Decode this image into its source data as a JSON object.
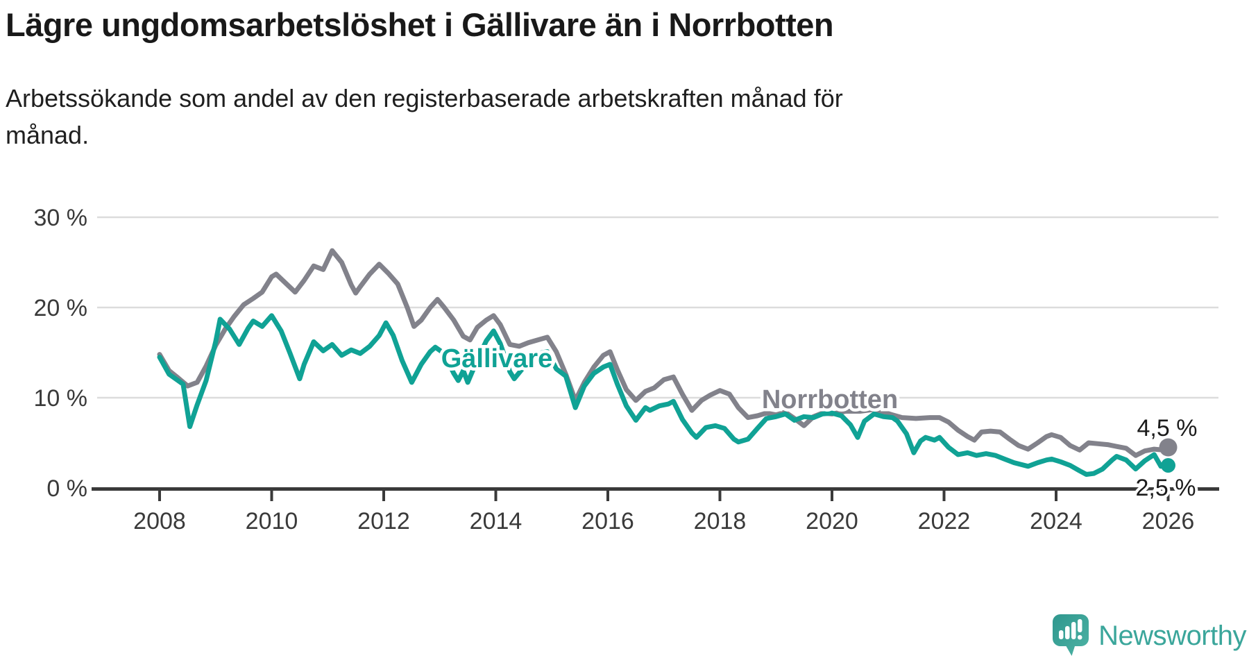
{
  "header": {
    "title": "Lägre ungdomsarbetslöshet i Gällivare än i Norrbotten",
    "subtitle_line1": "Arbetssökande som andel av den registerbaserade arbetskraften månad för",
    "subtitle_line2": "månad."
  },
  "colors": {
    "gallivare": "#10a295",
    "norrbotten": "#82828b",
    "grid": "#dcdcdc",
    "axis_line": "#3a3a3a",
    "axis_text": "#3a3a3a",
    "title_text": "#191919",
    "logo_brand": "#3ba69b"
  },
  "annotations": {
    "gallivare_series_label": "Gällivare",
    "norrbotten_series_label": "Norrbotten",
    "norrbotten_end_value": "4,5 %",
    "gallivare_end_value": "2,5 %"
  },
  "footer": {
    "brand": "Newsworthy"
  },
  "chart_data": {
    "type": "line",
    "title": "Lägre ungdomsarbetslöshet i Gällivare än i Norrbotten",
    "xlabel": "",
    "ylabel": "Arbetssökande som andel av den registerbaserade arbetskraften",
    "grid": "horizontal",
    "legend_position": "inline-labels",
    "x_axis": {
      "range": [
        2008,
        2026.05
      ],
      "ticks": [
        2008,
        2010,
        2012,
        2014,
        2016,
        2018,
        2020,
        2022,
        2024,
        2026
      ],
      "tick_labels": [
        "2008",
        "2010",
        "2012",
        "2014",
        "2016",
        "2018",
        "2020",
        "2022",
        "2024",
        "2026"
      ]
    },
    "y_axis": {
      "range": [
        0,
        31
      ],
      "ticks": [
        0,
        10,
        20,
        30
      ],
      "tick_labels": [
        "0 %",
        "10 %",
        "20 %",
        "30 %"
      ]
    },
    "series": [
      {
        "name": "Norrbotten",
        "color": "#82828b",
        "end_label": "4,5 %",
        "end_value": 4.5,
        "points": [
          [
            2008.0,
            14.8
          ],
          [
            2008.17,
            13.0
          ],
          [
            2008.33,
            12.2
          ],
          [
            2008.5,
            11.3
          ],
          [
            2008.67,
            11.7
          ],
          [
            2008.83,
            13.5
          ],
          [
            2009.0,
            15.8
          ],
          [
            2009.17,
            17.6
          ],
          [
            2009.33,
            19.0
          ],
          [
            2009.5,
            20.3
          ],
          [
            2009.67,
            21.0
          ],
          [
            2009.83,
            21.7
          ],
          [
            2010.0,
            23.4
          ],
          [
            2010.08,
            23.7
          ],
          [
            2010.25,
            22.7
          ],
          [
            2010.42,
            21.7
          ],
          [
            2010.58,
            23.0
          ],
          [
            2010.75,
            24.6
          ],
          [
            2010.92,
            24.2
          ],
          [
            2011.08,
            26.3
          ],
          [
            2011.25,
            25.0
          ],
          [
            2011.42,
            22.5
          ],
          [
            2011.5,
            21.6
          ],
          [
            2011.58,
            22.3
          ],
          [
            2011.75,
            23.7
          ],
          [
            2011.92,
            24.8
          ],
          [
            2012.08,
            23.8
          ],
          [
            2012.25,
            22.6
          ],
          [
            2012.42,
            20.0
          ],
          [
            2012.54,
            17.9
          ],
          [
            2012.67,
            18.6
          ],
          [
            2012.83,
            20.0
          ],
          [
            2012.96,
            20.9
          ],
          [
            2013.08,
            20.0
          ],
          [
            2013.25,
            18.6
          ],
          [
            2013.42,
            16.8
          ],
          [
            2013.54,
            16.4
          ],
          [
            2013.67,
            17.8
          ],
          [
            2013.83,
            18.6
          ],
          [
            2013.96,
            19.1
          ],
          [
            2014.08,
            18.1
          ],
          [
            2014.25,
            15.9
          ],
          [
            2014.42,
            15.7
          ],
          [
            2014.58,
            16.1
          ],
          [
            2014.75,
            16.4
          ],
          [
            2014.92,
            16.7
          ],
          [
            2015.08,
            15.1
          ],
          [
            2015.25,
            12.6
          ],
          [
            2015.42,
            9.7
          ],
          [
            2015.58,
            11.7
          ],
          [
            2015.75,
            13.4
          ],
          [
            2015.92,
            14.7
          ],
          [
            2016.04,
            15.1
          ],
          [
            2016.17,
            13.1
          ],
          [
            2016.33,
            10.9
          ],
          [
            2016.5,
            9.7
          ],
          [
            2016.67,
            10.7
          ],
          [
            2016.83,
            11.1
          ],
          [
            2017.0,
            12.0
          ],
          [
            2017.17,
            12.3
          ],
          [
            2017.33,
            10.4
          ],
          [
            2017.5,
            8.6
          ],
          [
            2017.67,
            9.7
          ],
          [
            2017.83,
            10.3
          ],
          [
            2018.0,
            10.8
          ],
          [
            2018.17,
            10.4
          ],
          [
            2018.33,
            8.9
          ],
          [
            2018.5,
            7.8
          ],
          [
            2018.67,
            8.0
          ],
          [
            2018.83,
            8.3
          ],
          [
            2019.0,
            8.1
          ],
          [
            2019.17,
            8.4
          ],
          [
            2019.33,
            7.7
          ],
          [
            2019.5,
            6.9
          ],
          [
            2019.67,
            7.9
          ],
          [
            2019.83,
            8.3
          ],
          [
            2020.0,
            8.2
          ],
          [
            2020.25,
            8.5
          ],
          [
            2020.5,
            8.5
          ],
          [
            2020.75,
            8.7
          ],
          [
            2020.92,
            8.4
          ],
          [
            2021.08,
            8.1
          ],
          [
            2021.25,
            7.8
          ],
          [
            2021.5,
            7.7
          ],
          [
            2021.75,
            7.8
          ],
          [
            2021.92,
            7.8
          ],
          [
            2022.08,
            7.3
          ],
          [
            2022.25,
            6.4
          ],
          [
            2022.42,
            5.7
          ],
          [
            2022.54,
            5.3
          ],
          [
            2022.67,
            6.2
          ],
          [
            2022.83,
            6.3
          ],
          [
            2023.0,
            6.2
          ],
          [
            2023.17,
            5.4
          ],
          [
            2023.33,
            4.7
          ],
          [
            2023.5,
            4.3
          ],
          [
            2023.67,
            5.0
          ],
          [
            2023.83,
            5.7
          ],
          [
            2023.92,
            5.9
          ],
          [
            2024.08,
            5.6
          ],
          [
            2024.25,
            4.7
          ],
          [
            2024.42,
            4.2
          ],
          [
            2024.58,
            5.0
          ],
          [
            2024.75,
            4.9
          ],
          [
            2024.92,
            4.8
          ],
          [
            2025.08,
            4.6
          ],
          [
            2025.25,
            4.4
          ],
          [
            2025.42,
            3.6
          ],
          [
            2025.58,
            4.1
          ],
          [
            2025.75,
            4.3
          ],
          [
            2025.92,
            4.2
          ],
          [
            2026.0,
            4.5
          ]
        ]
      },
      {
        "name": "Gällivare",
        "color": "#10a295",
        "end_label": "2,5 %",
        "end_value": 2.5,
        "points": [
          [
            2008.0,
            14.5
          ],
          [
            2008.17,
            12.6
          ],
          [
            2008.33,
            11.9
          ],
          [
            2008.42,
            11.5
          ],
          [
            2008.54,
            6.8
          ],
          [
            2008.67,
            9.2
          ],
          [
            2008.83,
            11.9
          ],
          [
            2009.0,
            16.2
          ],
          [
            2009.08,
            18.7
          ],
          [
            2009.25,
            17.6
          ],
          [
            2009.42,
            15.9
          ],
          [
            2009.58,
            17.7
          ],
          [
            2009.67,
            18.5
          ],
          [
            2009.83,
            17.9
          ],
          [
            2010.0,
            19.1
          ],
          [
            2010.17,
            17.4
          ],
          [
            2010.33,
            14.9
          ],
          [
            2010.5,
            12.1
          ],
          [
            2010.58,
            13.7
          ],
          [
            2010.75,
            16.2
          ],
          [
            2010.92,
            15.2
          ],
          [
            2011.08,
            15.9
          ],
          [
            2011.25,
            14.7
          ],
          [
            2011.42,
            15.3
          ],
          [
            2011.58,
            14.9
          ],
          [
            2011.75,
            15.7
          ],
          [
            2011.92,
            16.9
          ],
          [
            2012.04,
            18.3
          ],
          [
            2012.17,
            16.9
          ],
          [
            2012.33,
            14.1
          ],
          [
            2012.5,
            11.7
          ],
          [
            2012.67,
            13.7
          ],
          [
            2012.83,
            15.1
          ],
          [
            2012.92,
            15.6
          ],
          [
            2013.08,
            14.9
          ],
          [
            2013.25,
            12.7
          ],
          [
            2013.33,
            11.9
          ],
          [
            2013.42,
            13.0
          ],
          [
            2013.5,
            11.7
          ],
          [
            2013.67,
            14.2
          ],
          [
            2013.83,
            16.3
          ],
          [
            2013.96,
            17.4
          ],
          [
            2014.08,
            16.0
          ],
          [
            2014.25,
            12.9
          ],
          [
            2014.33,
            12.1
          ],
          [
            2014.5,
            13.4
          ],
          [
            2014.67,
            14.4
          ],
          [
            2014.83,
            15.0
          ],
          [
            2014.92,
            15.1
          ],
          [
            2015.08,
            13.2
          ],
          [
            2015.25,
            12.4
          ],
          [
            2015.42,
            8.9
          ],
          [
            2015.58,
            11.3
          ],
          [
            2015.75,
            12.7
          ],
          [
            2015.92,
            13.4
          ],
          [
            2016.04,
            13.7
          ],
          [
            2016.17,
            11.5
          ],
          [
            2016.33,
            9.1
          ],
          [
            2016.5,
            7.5
          ],
          [
            2016.67,
            8.9
          ],
          [
            2016.75,
            8.6
          ],
          [
            2016.92,
            9.1
          ],
          [
            2017.08,
            9.3
          ],
          [
            2017.17,
            9.6
          ],
          [
            2017.33,
            7.6
          ],
          [
            2017.5,
            6.1
          ],
          [
            2017.58,
            5.6
          ],
          [
            2017.75,
            6.7
          ],
          [
            2017.92,
            6.9
          ],
          [
            2018.08,
            6.6
          ],
          [
            2018.25,
            5.4
          ],
          [
            2018.33,
            5.1
          ],
          [
            2018.5,
            5.4
          ],
          [
            2018.67,
            6.6
          ],
          [
            2018.83,
            7.7
          ],
          [
            2019.0,
            7.9
          ],
          [
            2019.17,
            8.2
          ],
          [
            2019.33,
            7.5
          ],
          [
            2019.5,
            7.9
          ],
          [
            2019.67,
            7.8
          ],
          [
            2019.83,
            8.2
          ],
          [
            2020.0,
            8.3
          ],
          [
            2020.17,
            8.0
          ],
          [
            2020.33,
            7.0
          ],
          [
            2020.46,
            5.6
          ],
          [
            2020.58,
            7.4
          ],
          [
            2020.75,
            8.2
          ],
          [
            2020.92,
            7.9
          ],
          [
            2021.08,
            7.8
          ],
          [
            2021.17,
            7.4
          ],
          [
            2021.33,
            6.0
          ],
          [
            2021.46,
            3.9
          ],
          [
            2021.58,
            5.2
          ],
          [
            2021.67,
            5.6
          ],
          [
            2021.83,
            5.3
          ],
          [
            2021.92,
            5.6
          ],
          [
            2022.08,
            4.5
          ],
          [
            2022.25,
            3.7
          ],
          [
            2022.42,
            3.9
          ],
          [
            2022.58,
            3.6
          ],
          [
            2022.75,
            3.8
          ],
          [
            2022.92,
            3.6
          ],
          [
            2023.08,
            3.2
          ],
          [
            2023.25,
            2.8
          ],
          [
            2023.5,
            2.4
          ],
          [
            2023.67,
            2.8
          ],
          [
            2023.83,
            3.1
          ],
          [
            2023.92,
            3.2
          ],
          [
            2024.08,
            2.9
          ],
          [
            2024.25,
            2.5
          ],
          [
            2024.42,
            1.9
          ],
          [
            2024.54,
            1.5
          ],
          [
            2024.67,
            1.6
          ],
          [
            2024.83,
            2.1
          ],
          [
            2025.0,
            3.1
          ],
          [
            2025.08,
            3.5
          ],
          [
            2025.25,
            3.1
          ],
          [
            2025.42,
            2.1
          ],
          [
            2025.58,
            3.0
          ],
          [
            2025.75,
            3.7
          ],
          [
            2025.87,
            2.4
          ],
          [
            2026.0,
            2.5
          ]
        ]
      }
    ]
  }
}
